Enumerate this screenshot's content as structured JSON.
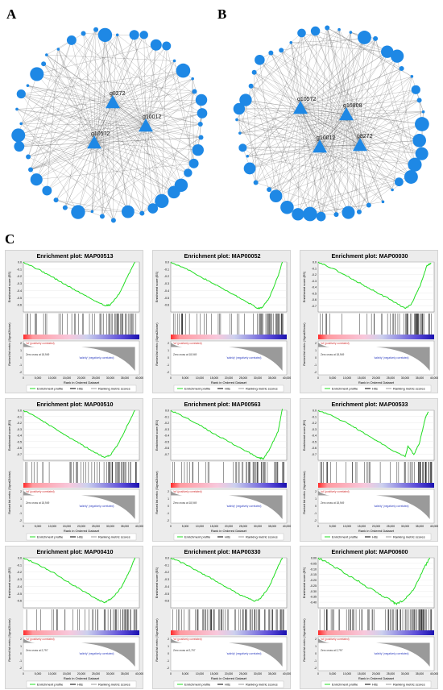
{
  "panels": {
    "a": "A",
    "b": "B",
    "c": "C"
  },
  "network_a": {
    "hub_nodes": [
      "g8272",
      "g10012",
      "g10572"
    ],
    "node_color": "#1e88e5",
    "edge_color": "#555555"
  },
  "network_b": {
    "hub_nodes": [
      "g10572",
      "g16808",
      "g10012",
      "g8272"
    ],
    "node_color": "#1e88e5",
    "edge_color": "#555555"
  },
  "gsea_common": {
    "es_axis_label": "Enrichment score (ES)",
    "metric_axis_label": "Ranked list metric (Signal2Noise)",
    "x_axis_label": "Rank in Ordered Dataset",
    "x_ticks": [
      "0",
      "5,000",
      "10,000",
      "15,000",
      "20,000",
      "25,000",
      "30,000",
      "35,000",
      "40,000"
    ],
    "pos_label": "'wt' (positively correlated)",
    "neg_label": "'salinity' (negatively correlated)",
    "legend": [
      "Enrichment profile",
      "Hits",
      "Ranking metric scores"
    ],
    "curve_color": "#22dd22",
    "x_max": 40000
  },
  "chart_data": [
    {
      "type": "line",
      "title": "Enrichment plot: MAP00513",
      "x": [
        0,
        5000,
        10000,
        15000,
        20000,
        25000,
        28000,
        30000,
        33000,
        36000,
        38500
      ],
      "y": [
        0,
        -0.1,
        -0.21,
        -0.33,
        -0.44,
        -0.55,
        -0.61,
        -0.6,
        -0.45,
        -0.2,
        0
      ],
      "ylim": [
        -0.7,
        0
      ],
      "yticks": [
        "0.0",
        "-0.1",
        "-0.2",
        "-0.3",
        "-0.4",
        "-0.5",
        "-0.6"
      ],
      "zero_cross": "Zero cross at 18,949"
    },
    {
      "type": "line",
      "title": "Enrichment plot: MAP00052",
      "x": [
        0,
        5000,
        10000,
        15000,
        20000,
        25000,
        30000,
        31500,
        34000,
        37000,
        38500
      ],
      "y": [
        0,
        -0.09,
        -0.2,
        -0.31,
        -0.42,
        -0.53,
        -0.65,
        -0.64,
        -0.5,
        -0.2,
        0
      ],
      "ylim": [
        -0.7,
        0
      ],
      "yticks": [
        "0.0",
        "-0.1",
        "-0.2",
        "-0.3",
        "-0.4",
        "-0.5",
        "-0.6"
      ],
      "zero_cross": "Zero cross at 18,949"
    },
    {
      "type": "line",
      "title": "Enrichment plot: MAP00030",
      "x": [
        0,
        5000,
        10000,
        15000,
        20000,
        25000,
        30000,
        32000,
        35000,
        37500,
        39000
      ],
      "y": [
        0,
        -0.09,
        -0.2,
        -0.31,
        -0.42,
        -0.53,
        -0.65,
        -0.6,
        -0.35,
        -0.05,
        -0.02
      ],
      "ylim": [
        -0.7,
        0
      ],
      "yticks": [
        "0.0",
        "-0.1",
        "-0.2",
        "-0.3",
        "-0.4",
        "-0.5",
        "-0.6",
        "-0.7"
      ],
      "zero_cross": "Zero cross at 18,949"
    },
    {
      "type": "line",
      "title": "Enrichment plot: MAP00510",
      "x": [
        0,
        5000,
        10000,
        15000,
        20000,
        25000,
        28000,
        30000,
        33000,
        36000,
        38500
      ],
      "y": [
        0,
        -0.11,
        -0.23,
        -0.36,
        -0.48,
        -0.6,
        -0.66,
        -0.63,
        -0.45,
        -0.2,
        0
      ],
      "ylim": [
        -0.7,
        0
      ],
      "yticks": [
        "0.0",
        "-0.1",
        "-0.2",
        "-0.3",
        "-0.4",
        "-0.5",
        "-0.6",
        "-0.7"
      ],
      "zero_cross": "Zero cross at 18,949"
    },
    {
      "type": "line",
      "title": "Enrichment plot: MAP00563",
      "x": [
        0,
        5000,
        10000,
        15000,
        20000,
        25000,
        30000,
        32000,
        34000,
        37000,
        38500
      ],
      "y": [
        0,
        -0.1,
        -0.21,
        -0.33,
        -0.44,
        -0.55,
        -0.66,
        -0.68,
        -0.55,
        -0.3,
        0.02
      ],
      "ylim": [
        -0.7,
        0
      ],
      "yticks": [
        "0.0",
        "-0.1",
        "-0.2",
        "-0.3",
        "-0.4",
        "-0.5",
        "-0.6",
        "-0.7"
      ],
      "zero_cross": "Zero cross at 18,949"
    },
    {
      "type": "line",
      "title": "Enrichment plot: MAP00533",
      "x": [
        0,
        5000,
        10000,
        15000,
        20000,
        25000,
        30000,
        31000,
        33000,
        35000,
        37000,
        38000
      ],
      "y": [
        0,
        -0.08,
        -0.18,
        -0.3,
        -0.42,
        -0.55,
        -0.65,
        -0.5,
        -0.62,
        -0.45,
        -0.1,
        -0.02
      ],
      "ylim": [
        -0.7,
        0
      ],
      "yticks": [
        "0.0",
        "-0.1",
        "-0.2",
        "-0.3",
        "-0.4",
        "-0.5",
        "-0.6",
        "-0.7"
      ],
      "zero_cross": "Zero cross at 18,949"
    },
    {
      "type": "line",
      "title": "Enrichment plot: MAP00410",
      "x": [
        0,
        5000,
        10000,
        15000,
        20000,
        25000,
        28000,
        31000,
        34000,
        37000,
        38500
      ],
      "y": [
        0,
        -0.09,
        -0.2,
        -0.33,
        -0.45,
        -0.57,
        -0.63,
        -0.55,
        -0.4,
        -0.15,
        0
      ],
      "ylim": [
        -0.7,
        0
      ],
      "yticks": [
        "0.0",
        "-0.1",
        "-0.2",
        "-0.3",
        "-0.4",
        "-0.5",
        "-0.6"
      ],
      "zero_cross": "Zero cross at 2,797"
    },
    {
      "type": "line",
      "title": "Enrichment plot: MAP00330",
      "x": [
        0,
        5000,
        10000,
        15000,
        20000,
        25000,
        29000,
        31000,
        34000,
        37000,
        38500
      ],
      "y": [
        0,
        -0.09,
        -0.2,
        -0.31,
        -0.43,
        -0.54,
        -0.61,
        -0.57,
        -0.4,
        -0.12,
        0
      ],
      "ylim": [
        -0.7,
        0
      ],
      "yticks": [
        "0.0",
        "-0.1",
        "-0.2",
        "-0.3",
        "-0.4",
        "-0.5",
        "-0.6"
      ],
      "zero_cross": "Zero cross at 2,797"
    },
    {
      "type": "line",
      "title": "Enrichment plot: MAP00600",
      "x": [
        0,
        5000,
        10000,
        15000,
        20000,
        25000,
        27000,
        30000,
        33000,
        36000,
        38500
      ],
      "y": [
        0,
        -0.07,
        -0.15,
        -0.23,
        -0.31,
        -0.38,
        -0.42,
        -0.37,
        -0.28,
        -0.12,
        0
      ],
      "ylim": [
        -0.45,
        0
      ],
      "yticks": [
        "0.00",
        "-0.05",
        "-0.10",
        "-0.15",
        "-0.20",
        "-0.25",
        "-0.30",
        "-0.35",
        "-0.40"
      ],
      "zero_cross": "Zero cross at 2,797"
    }
  ]
}
